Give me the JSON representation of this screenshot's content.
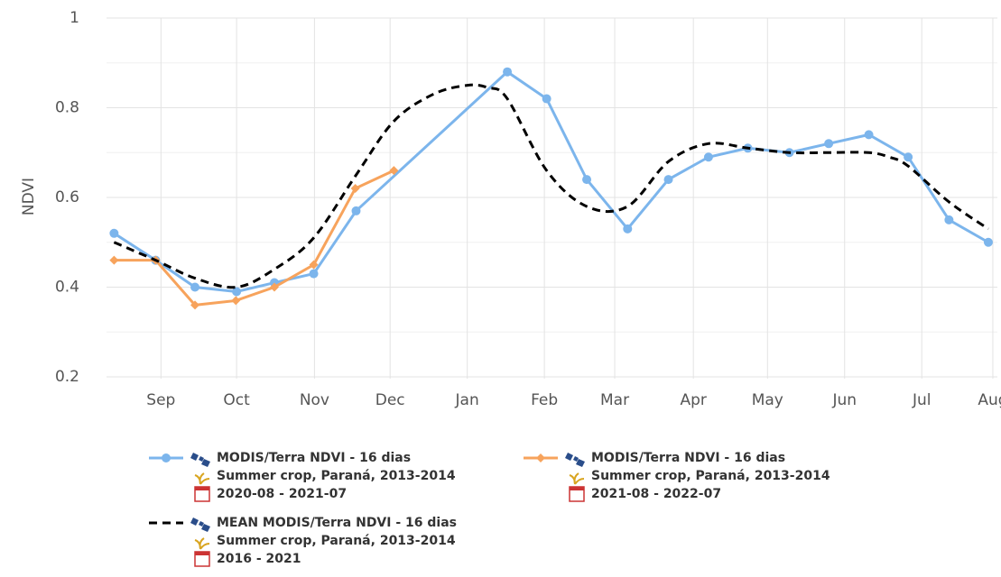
{
  "chart_data": {
    "type": "line",
    "y_label": "NDVI",
    "xlim": [
      0.28,
      12.06
    ],
    "xticks": [
      {
        "value": 1,
        "label": "Sep"
      },
      {
        "value": 2,
        "label": "Oct"
      },
      {
        "value": 3.03,
        "label": "Nov"
      },
      {
        "value": 4.03,
        "label": "Dec"
      },
      {
        "value": 5.05,
        "label": "Jan"
      },
      {
        "value": 6.07,
        "label": "Feb"
      },
      {
        "value": 7.0,
        "label": "Mar"
      },
      {
        "value": 8.04,
        "label": "Apr"
      },
      {
        "value": 9.02,
        "label": "May"
      },
      {
        "value": 10.04,
        "label": "Jun"
      },
      {
        "value": 11.06,
        "label": "Jul"
      },
      {
        "value": 12.0,
        "label": "Aug"
      }
    ],
    "ylim": [
      0.196,
      1.0
    ],
    "yticks": [
      0.2,
      0.4,
      0.6,
      0.8,
      1
    ],
    "minor_yticks": [
      0.3,
      0.5,
      0.7,
      0.9
    ],
    "grid": true,
    "series": [
      {
        "name": "MODIS/Terra NDVI - 16 dias",
        "details": [
          "Summer crop, Paraná, 2013-2014",
          "2020-08 - 2021-07"
        ],
        "color": "#7cb5ec",
        "style": "solid",
        "markers": true,
        "x": [
          0.38,
          0.93,
          1.45,
          2.0,
          2.5,
          3.02,
          3.58,
          5.58,
          6.1,
          6.63,
          7.17,
          7.71,
          8.24,
          8.76,
          9.31,
          9.83,
          10.36,
          10.88,
          11.42,
          11.94
        ],
        "values": [
          0.52,
          0.46,
          0.4,
          0.39,
          0.41,
          0.43,
          0.57,
          0.88,
          0.82,
          0.64,
          0.53,
          0.64,
          0.69,
          0.71,
          0.7,
          0.72,
          0.74,
          0.69,
          0.55,
          0.5
        ]
      },
      {
        "name": "MODIS/Terra NDVI - 16 dias",
        "details": [
          "Summer crop, Paraná, 2013-2014",
          "2021-08 - 2022-07"
        ],
        "color": "#f7a35c",
        "style": "solid",
        "markers": true,
        "x": [
          0.38,
          0.93,
          1.45,
          1.99,
          2.5,
          3.02,
          3.57,
          4.08
        ],
        "values": [
          0.46,
          0.46,
          0.36,
          0.37,
          0.4,
          0.45,
          0.62,
          0.66
        ]
      },
      {
        "name": "MEAN MODIS/Terra NDVI - 16 dias",
        "details": [
          "Summer crop, Paraná, 2013-2014",
          "2016 - 2021"
        ],
        "color": "#000000",
        "style": "dashed",
        "markers": false,
        "x": [
          0.38,
          0.93,
          1.45,
          2.0,
          2.5,
          3.02,
          3.58,
          4.08,
          4.6,
          5.05,
          5.32,
          5.58,
          6.1,
          6.63,
          7.17,
          7.71,
          8.24,
          8.76,
          9.31,
          9.83,
          10.36,
          10.63,
          10.88,
          11.42,
          11.94
        ],
        "values": [
          0.5,
          0.46,
          0.42,
          0.4,
          0.44,
          0.51,
          0.65,
          0.77,
          0.83,
          0.85,
          0.845,
          0.82,
          0.66,
          0.58,
          0.58,
          0.68,
          0.72,
          0.71,
          0.7,
          0.7,
          0.7,
          0.69,
          0.67,
          0.59,
          0.53
        ]
      }
    ]
  }
}
